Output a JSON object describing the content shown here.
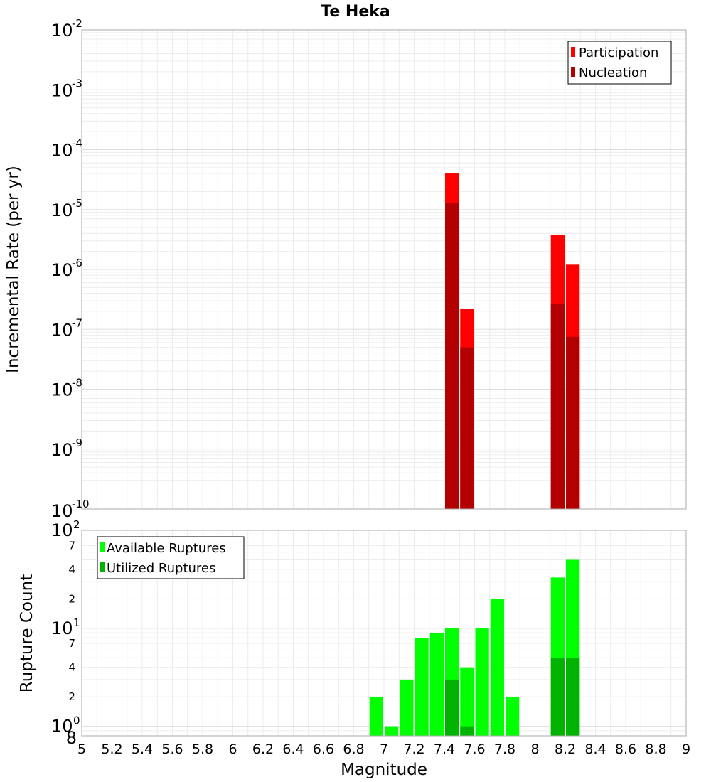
{
  "chart_data": [
    {
      "type": "bar",
      "title": "Te Heka",
      "ylabel": "Incremental Rate (per yr)",
      "yscale": "log",
      "ylim": [
        1e-10,
        0.01
      ],
      "xlim": [
        5,
        9
      ],
      "y_tick_labels": [
        {
          "base": "10",
          "exp": "-10"
        },
        {
          "base": "10",
          "exp": "-9"
        },
        {
          "base": "10",
          "exp": "-8"
        },
        {
          "base": "10",
          "exp": "-7"
        },
        {
          "base": "10",
          "exp": "-6"
        },
        {
          "base": "10",
          "exp": "-5"
        },
        {
          "base": "10",
          "exp": "-4"
        },
        {
          "base": "10",
          "exp": "-3"
        },
        {
          "base": "10",
          "exp": "-2"
        }
      ],
      "grid": true,
      "legend_position": "top-right",
      "series": [
        {
          "name": "Participation",
          "color": "#ff0000",
          "x": [
            7.45,
            7.55,
            8.15,
            8.25
          ],
          "values": [
            4e-05,
            2.2e-07,
            3.8e-06,
            1.2e-06
          ]
        },
        {
          "name": "Nucleation",
          "color": "#b30000",
          "x": [
            7.45,
            7.55,
            8.15,
            8.25
          ],
          "values": [
            1.3e-05,
            5e-08,
            2.7e-07,
            7.5e-08
          ]
        }
      ]
    },
    {
      "type": "bar",
      "xlabel": "Magnitude",
      "ylabel": "Rupture Count",
      "yscale": "log",
      "ylim": [
        0.8,
        100
      ],
      "xlim": [
        5,
        9
      ],
      "x_tick_labels": [
        "5",
        "5.2",
        "5.4",
        "5.6",
        "5.8",
        "6",
        "6.2",
        "6.4",
        "6.6",
        "6.8",
        "7",
        "7.2",
        "7.4",
        "7.6",
        "7.8",
        "8",
        "8.2",
        "8.4",
        "8.6",
        "8.8",
        "9"
      ],
      "y_tick_labels": [
        {
          "base": "10",
          "exp": "0"
        },
        {
          "base": "10",
          "exp": "1"
        },
        {
          "base": "10",
          "exp": "2"
        }
      ],
      "y_minor_labels": [
        {
          "label": "8",
          "value": 0.8
        },
        {
          "label": "2",
          "value": 2
        },
        {
          "label": "4",
          "value": 4
        },
        {
          "label": "7",
          "value": 7
        },
        {
          "label": "2",
          "value": 20
        },
        {
          "label": "4",
          "value": 40
        },
        {
          "label": "7",
          "value": 70
        }
      ],
      "grid": true,
      "legend_position": "top-left",
      "series": [
        {
          "name": "Available Ruptures",
          "color": "#00ff00",
          "x": [
            6.95,
            7.05,
            7.15,
            7.25,
            7.35,
            7.45,
            7.55,
            7.65,
            7.75,
            7.85,
            8.15,
            8.25
          ],
          "values": [
            2,
            1,
            3,
            8,
            9,
            10,
            4,
            10,
            20,
            2,
            33,
            50
          ]
        },
        {
          "name": "Utilized Ruptures",
          "color": "#00b300",
          "x": [
            7.45,
            7.55,
            8.15,
            8.25
          ],
          "values": [
            3,
            1,
            5,
            5
          ]
        }
      ]
    }
  ]
}
